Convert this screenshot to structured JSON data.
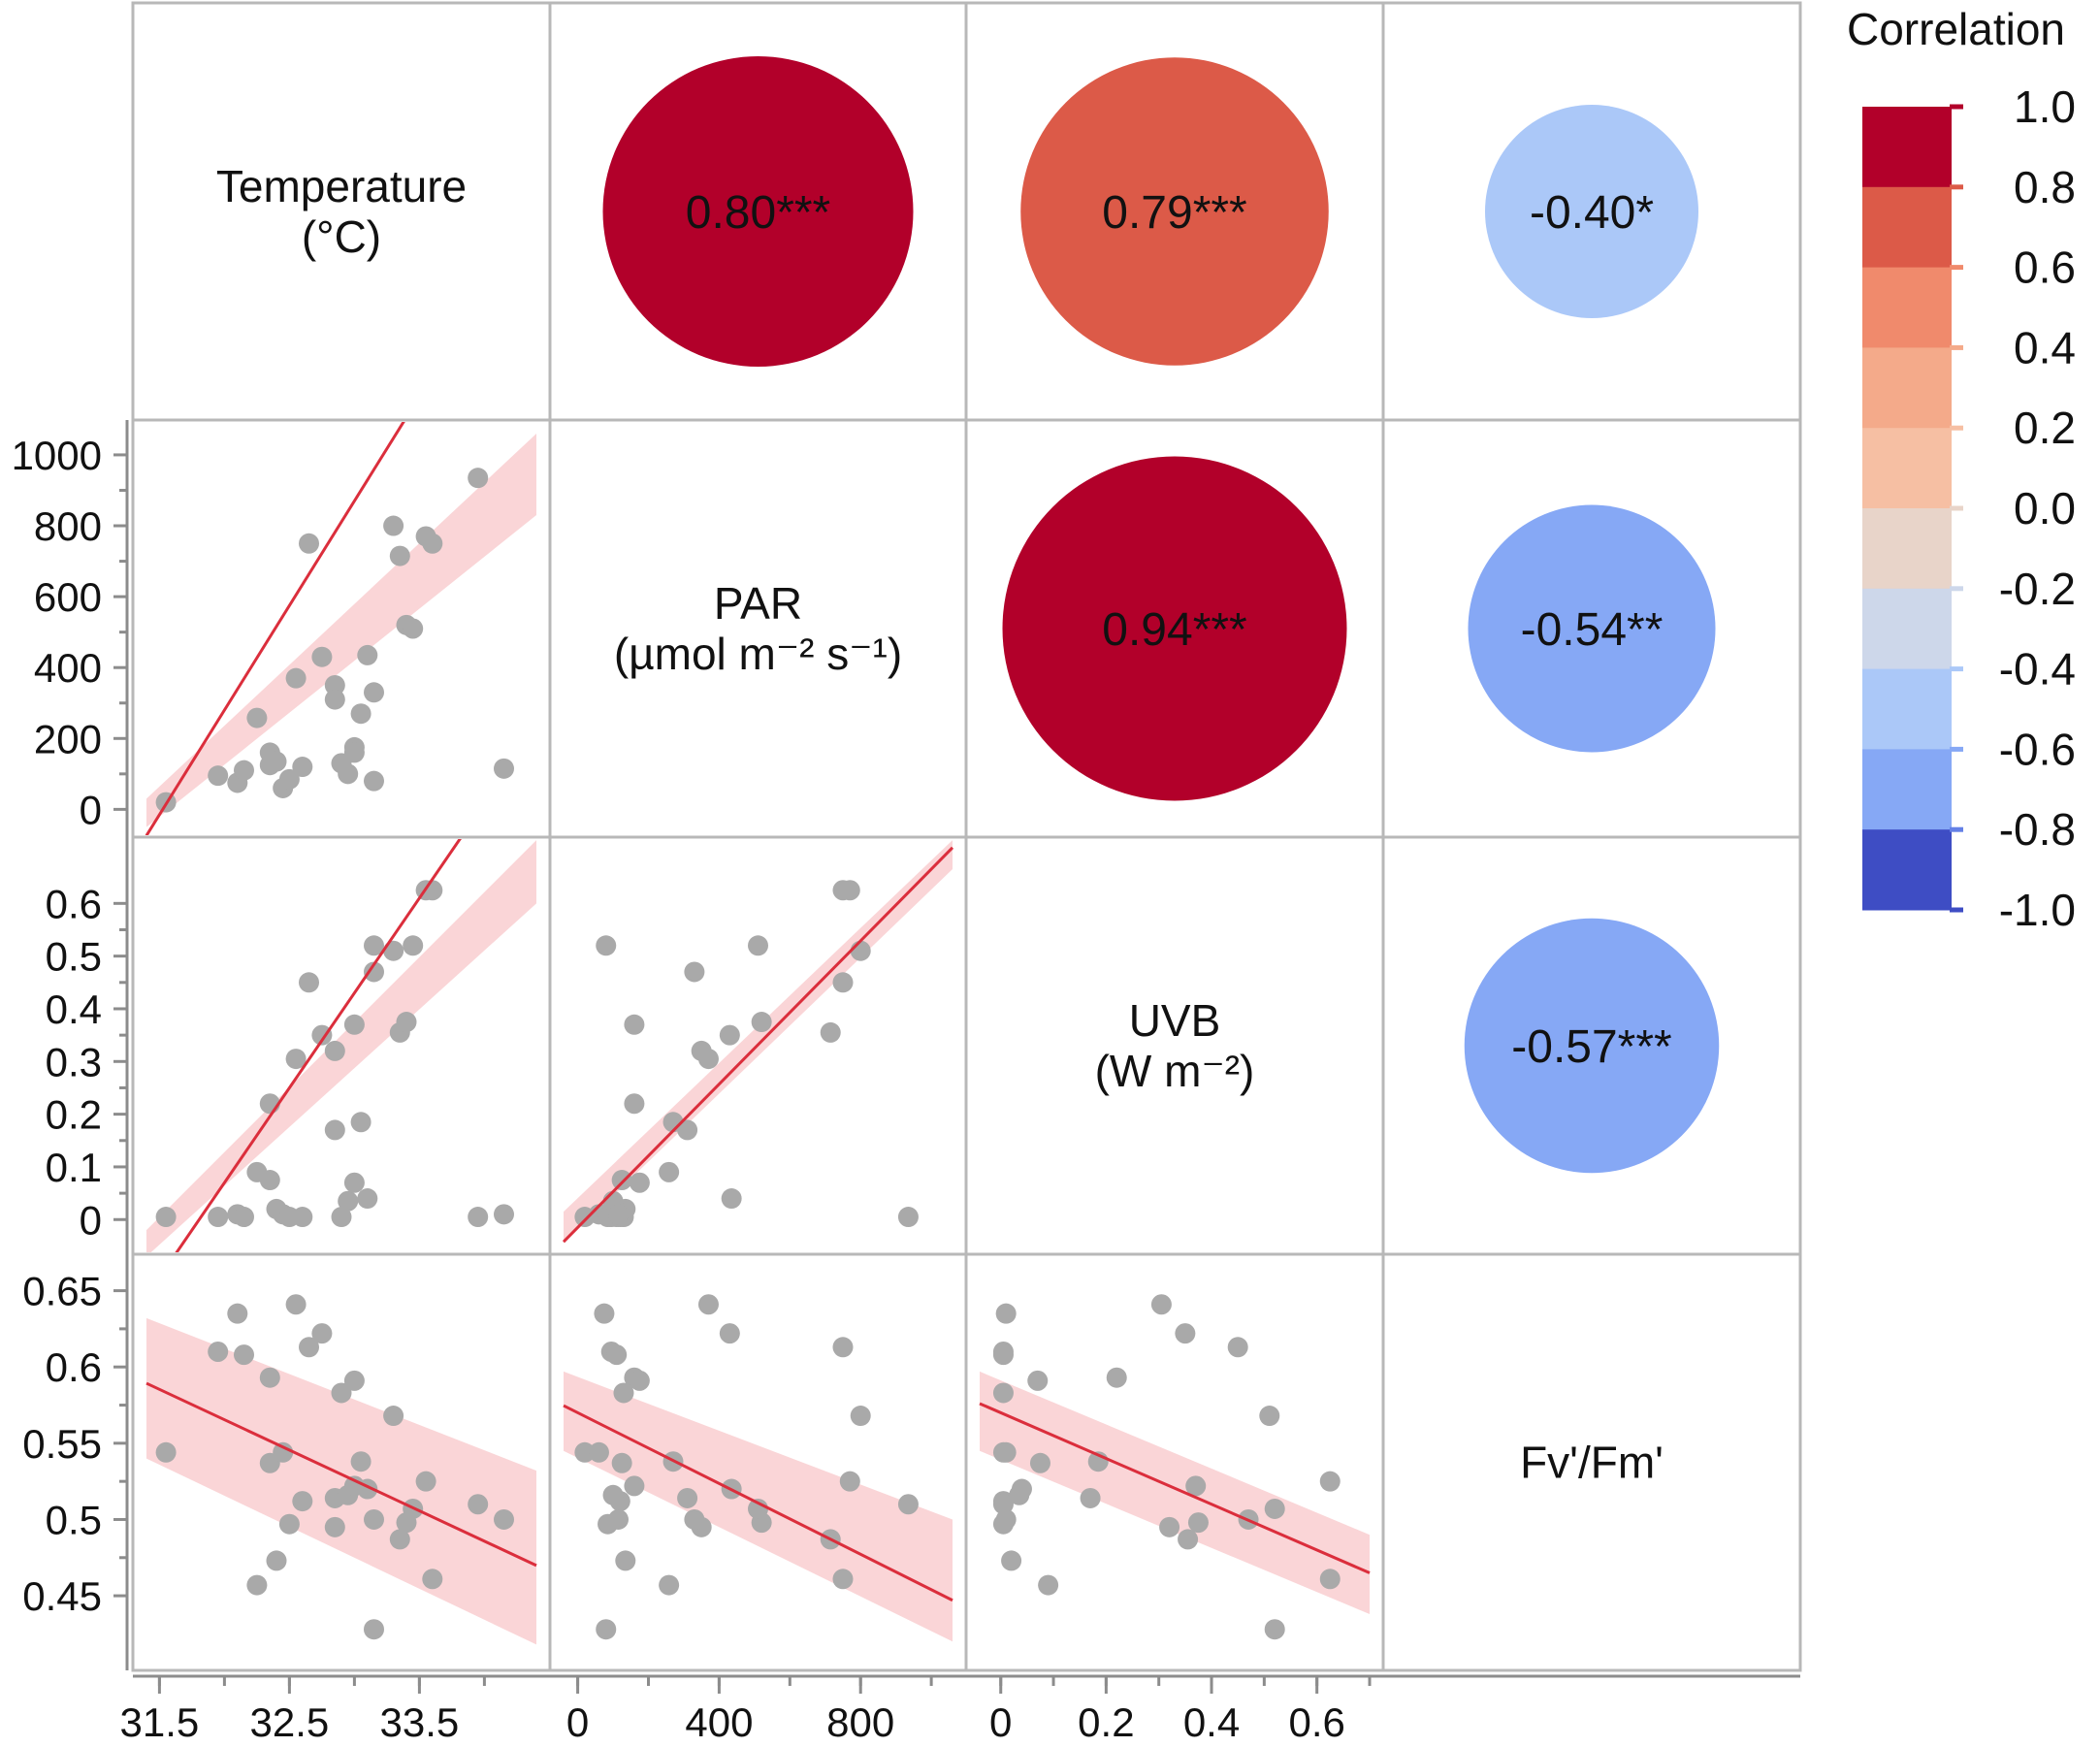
{
  "chart_data": {
    "type": "scatter",
    "title": "",
    "layout": "correlation pair matrix",
    "variables": [
      {
        "id": "temp",
        "label_lines": [
          "Temperature",
          "(°C)"
        ],
        "range": [
          31.4,
          34.4
        ],
        "ticks": [
          "31.5",
          "32.5",
          "33.5"
        ],
        "tick_values": [
          31.5,
          32.5,
          33.5
        ]
      },
      {
        "id": "par",
        "label_lines": [
          "PAR",
          "(µmol m⁻² s⁻¹)"
        ],
        "range": [
          -40,
          1060
        ],
        "ticks": [
          "0",
          "400",
          "800"
        ],
        "tick_values": [
          0,
          400,
          800
        ],
        "y_ticks": [
          "0",
          "200",
          "400",
          "600",
          "800",
          "1000"
        ],
        "y_tick_values": [
          0,
          200,
          400,
          600,
          800,
          1000
        ]
      },
      {
        "id": "uvb",
        "label_lines": [
          "UVB",
          "(W m⁻²)"
        ],
        "range": [
          -0.04,
          0.7
        ],
        "ticks": [
          "0",
          "0.2",
          "0.4",
          "0.6"
        ],
        "tick_values": [
          0,
          0.2,
          0.4,
          0.6
        ],
        "y_ticks": [
          "0",
          "0.1",
          "0.2",
          "0.3",
          "0.4",
          "0.5",
          "0.6"
        ],
        "y_tick_values": [
          0,
          0.1,
          0.2,
          0.3,
          0.4,
          0.5,
          0.6
        ]
      },
      {
        "id": "fvfm",
        "label_lines": [
          "Fv'/Fm'"
        ],
        "range": [
          0.41,
          0.665
        ],
        "y_ticks": [
          "0.45",
          "0.5",
          "0.55",
          "0.6",
          "0.65"
        ],
        "y_tick_values": [
          0.45,
          0.5,
          0.55,
          0.6,
          0.65
        ]
      }
    ],
    "correlations": [
      {
        "pair": [
          "temp",
          "par"
        ],
        "r": 0.8,
        "label": "0.80***"
      },
      {
        "pair": [
          "temp",
          "uvb"
        ],
        "r": 0.79,
        "label": "0.79***"
      },
      {
        "pair": [
          "temp",
          "fvfm"
        ],
        "r": -0.4,
        "label": "-0.40*"
      },
      {
        "pair": [
          "par",
          "uvb"
        ],
        "r": 0.94,
        "label": "0.94***"
      },
      {
        "pair": [
          "par",
          "fvfm"
        ],
        "r": -0.54,
        "label": "-0.54**"
      },
      {
        "pair": [
          "uvb",
          "fvfm"
        ],
        "r": -0.57,
        "label": "-0.57***"
      }
    ],
    "observations": {
      "temp": [
        31.55,
        31.95,
        32.1,
        32.15,
        32.25,
        32.35,
        32.35,
        32.4,
        32.45,
        32.5,
        32.55,
        32.6,
        32.65,
        32.75,
        32.85,
        32.85,
        32.9,
        32.95,
        33.0,
        33.0,
        33.05,
        33.1,
        33.15,
        33.15,
        33.3,
        33.35,
        33.4,
        33.45,
        33.55,
        33.6,
        33.95,
        34.15
      ],
      "par": [
        20,
        95,
        75,
        110,
        258,
        125,
        160,
        135,
        60,
        85,
        370,
        120,
        750,
        430,
        350,
        310,
        130,
        100,
        175,
        160,
        270,
        435,
        330,
        80,
        800,
        715,
        520,
        510,
        770,
        750,
        935,
        115
      ],
      "uvb": [
        0.005,
        0.005,
        0.01,
        0.005,
        0.09,
        0.075,
        0.22,
        0.02,
        0.01,
        0.005,
        0.305,
        0.005,
        0.45,
        0.35,
        0.32,
        0.17,
        0.005,
        0.035,
        0.07,
        0.37,
        0.185,
        0.04,
        0.47,
        0.52,
        0.51,
        0.355,
        0.375,
        0.52,
        0.625,
        0.625,
        0.005,
        0.01
      ],
      "fvfm": [
        0.544,
        0.61,
        0.635,
        0.608,
        0.457,
        0.537,
        0.593,
        0.473,
        0.544,
        0.497,
        0.641,
        0.512,
        0.613,
        0.622,
        0.495,
        0.514,
        0.583,
        0.516,
        0.591,
        0.522,
        0.538,
        0.52,
        0.5,
        0.428,
        0.568,
        0.487,
        0.498,
        0.507,
        0.525,
        0.461,
        0.51,
        0.5
      ]
    },
    "fits": [
      {
        "x": "temp",
        "y": "par",
        "slope": 590,
        "intercept": -18600,
        "ci_lo": [
          -50,
          830
        ],
        "ci_hi": [
          30,
          1060
        ]
      },
      {
        "x": "temp",
        "y": "uvb",
        "slope": 0.36,
        "intercept": -11.45,
        "ci_lo": [
          -0.07,
          0.6
        ],
        "ci_hi": [
          -0.02,
          0.72
        ]
      },
      {
        "x": "par",
        "y": "uvb",
        "slope": 0.00068,
        "intercept": -0.015,
        "ci_lo": [
          -0.045,
          0.665
        ],
        "ci_hi": [
          0.015,
          0.72
        ]
      },
      {
        "x": "temp",
        "y": "fvfm",
        "slope": -0.0398,
        "intercept": 1.839,
        "ci_lo": [
          0.54,
          0.418
        ],
        "ci_hi": [
          0.632,
          0.532
        ]
      },
      {
        "x": "par",
        "y": "fvfm",
        "slope": -0.000116,
        "intercept": 0.57,
        "ci_lo": [
          0.545,
          0.42
        ],
        "ci_hi": [
          0.597,
          0.5
        ]
      },
      {
        "x": "uvb",
        "y": "fvfm",
        "slope": -0.15,
        "intercept": 0.57,
        "ci_lo": [
          0.545,
          0.438
        ],
        "ci_hi": [
          0.597,
          0.49
        ]
      }
    ],
    "legend": {
      "title": "Correlation",
      "placement": "right",
      "labels": [
        "1.0",
        "0.8",
        "0.6",
        "0.4",
        "0.2",
        "0.0",
        "-0.2",
        "-0.4",
        "-0.6",
        "-0.8",
        "-1.0"
      ],
      "colors": [
        "#B2002A",
        "#DC5A48",
        "#F08A6C",
        "#F4AA8A",
        "#F6BFA3",
        "#E8D4C9",
        "#CDD7EA",
        "#ABC8F8",
        "#86A8F5",
        "#6480E6",
        "#3E4DC4"
      ]
    },
    "colors": {
      "points": "#A9A9A9",
      "fit_line": "#DB2E3C",
      "ci_band": "#FAD3D5",
      "grid": "#B8B8B8",
      "axis": "#8C8C8C"
    }
  }
}
